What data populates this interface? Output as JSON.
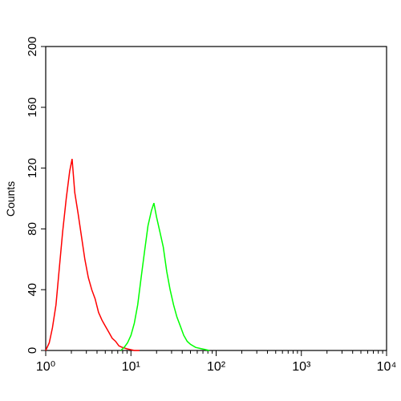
{
  "chart_data": {
    "type": "line",
    "ylabel": "Counts",
    "xscale": "log",
    "xlim": [
      1,
      10000
    ],
    "xticks": [
      {
        "value": 1,
        "label": "10⁰"
      },
      {
        "value": 10,
        "label": "10¹"
      },
      {
        "value": 100,
        "label": "10²"
      },
      {
        "value": 1000,
        "label": "10³"
      },
      {
        "value": 10000,
        "label": "10⁴"
      }
    ],
    "ylim": [
      0,
      200
    ],
    "yticks": [
      0,
      40,
      80,
      120,
      160,
      200
    ],
    "series": [
      {
        "color": "#ff0000",
        "x": [
          1,
          1.1,
          1.2,
          1.32,
          1.45,
          1.58,
          1.74,
          1.91,
          2.04,
          2.19,
          2.4,
          2.63,
          2.88,
          3.16,
          3.47,
          3.8,
          4.17,
          4.57,
          5.01,
          5.5,
          6.03,
          6.61,
          7.24,
          7.94,
          9.12,
          10.96,
          12.59
        ],
        "values": [
          0,
          5,
          15,
          30,
          55,
          78,
          100,
          118,
          126,
          104,
          90,
          75,
          60,
          48,
          40,
          34,
          25,
          20,
          16,
          12,
          8,
          6,
          3,
          2,
          1,
          0,
          0
        ]
      },
      {
        "color": "#00ff00",
        "x": [
          7.59,
          8.32,
          9.12,
          10,
          10.96,
          12.02,
          13.18,
          14.45,
          15.85,
          17.38,
          18.62,
          19.95,
          21.88,
          23.99,
          26.3,
          28.84,
          31.62,
          34.67,
          38.02,
          41.69,
          45.71,
          50.12,
          57.54,
          69.18,
          83.18
        ],
        "values": [
          0,
          2,
          5,
          10,
          18,
          30,
          48,
          65,
          82,
          92,
          97,
          88,
          78,
          68,
          52,
          40,
          30,
          22,
          16,
          10,
          6,
          4,
          2,
          1,
          0
        ]
      }
    ]
  }
}
